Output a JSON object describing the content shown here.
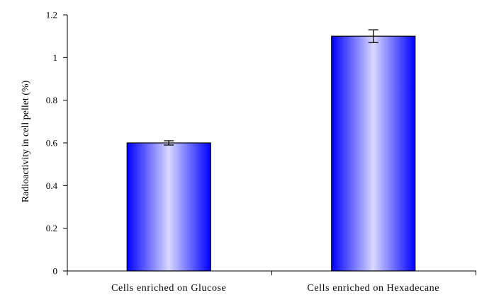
{
  "chart_data": {
    "type": "bar",
    "categories": [
      "Cells enriched on Glucose",
      "Cells enriched on Hexadecane"
    ],
    "values": [
      0.6,
      1.1
    ],
    "errors": [
      0.01,
      0.03
    ],
    "title": "",
    "xlabel": "",
    "ylabel": "Radioactivity in cell pellet (%)",
    "ylim": [
      0,
      1.2
    ],
    "yticks": [
      0,
      0.2,
      0.4,
      0.6,
      0.8,
      1,
      1.2
    ],
    "ytick_labels": [
      "0",
      "0.2",
      "0.4",
      "0.6",
      "0.8",
      "1",
      "1.2"
    ],
    "grid": false,
    "legend": "none",
    "colors": {
      "bar_edge": "#0000ff",
      "bar_center": "#d8d8ff",
      "bar_outline": "#000000",
      "axis": "#000000"
    }
  }
}
